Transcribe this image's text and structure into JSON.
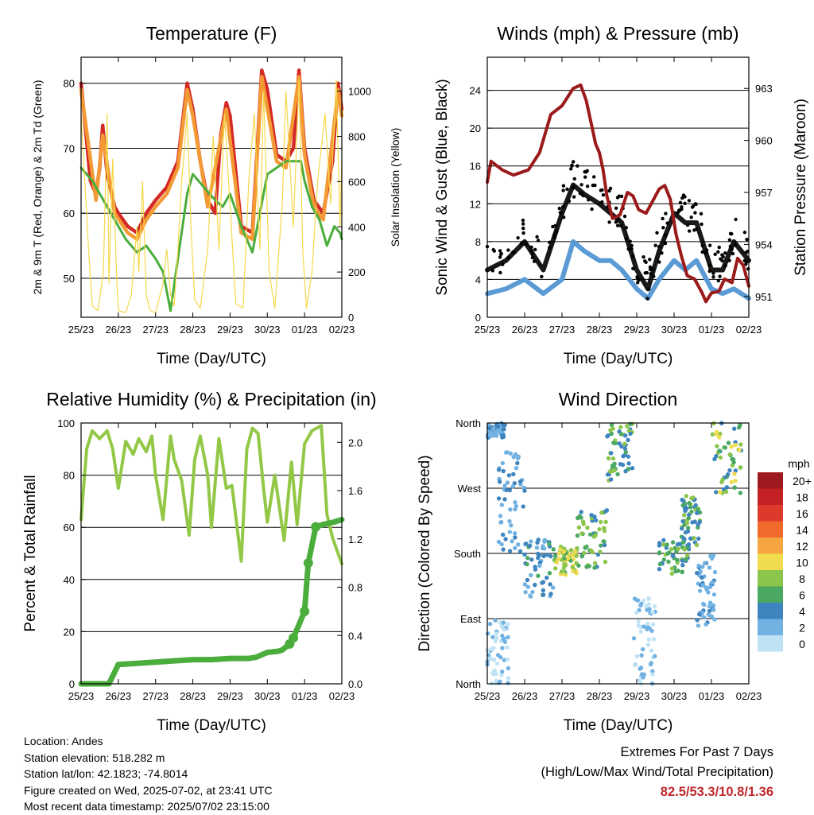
{
  "info": {
    "location": "Location: Andes",
    "elevation": "Station elevation: 518.282 m",
    "latlon": "Station lat/lon: 42.1823; -74.8014",
    "created": "Figure created on Wed, 2025-07-02, at 23:41 UTC",
    "recent": "Most recent data timestamp: 2025/07/02 23:15:00"
  },
  "extremes": {
    "title": "Extremes For Past 7 Days",
    "subtitle": "(High/Low/Max Wind/Total Precipitation)",
    "values": "82.5/53.3/10.8/1.36"
  },
  "colors": {
    "temp9m": "#d42a26",
    "temp2m": "#f39a35",
    "dewpoint": "#4aad3c",
    "solar": "#f5d84a",
    "wind": "#5b9bd5",
    "gust": "#000000",
    "pressure": "#9b1b1b",
    "rh": "#93c847",
    "precip": "#4aad3c"
  },
  "chart_data": [
    {
      "type": "line",
      "title": "Temperature (F)",
      "xlabel": "Time (Day/UTC)",
      "ylabel": "2m & 9m T (Red, Orange) & 2m Td (Green)",
      "ylabel_right": "Solar Insolation (Yellow)",
      "x_ticks": [
        "25/23",
        "26/23",
        "27/23",
        "28/23",
        "29/23",
        "30/23",
        "01/23",
        "02/23"
      ],
      "ylim": [
        44,
        84
      ],
      "y_ticks": [
        50,
        60,
        70,
        80
      ],
      "ylim_right": [
        0,
        1150
      ],
      "y_ticks_right": [
        0,
        200,
        400,
        600,
        800,
        1000
      ],
      "grid": true,
      "series": [
        {
          "axis": "left",
          "color": "#d42a26",
          "x": [
            0,
            0.12,
            0.25,
            0.4,
            0.5,
            0.58,
            0.7,
            0.9,
            1.0,
            1.25,
            1.5,
            1.75,
            2.0,
            2.3,
            2.6,
            2.85,
            3.0,
            3.2,
            3.4,
            3.6,
            3.75,
            3.9,
            4.0,
            4.3,
            4.6,
            4.75,
            4.85,
            5.0,
            5.25,
            5.5,
            5.7,
            5.85,
            6.0,
            6.25,
            6.5,
            6.75,
            6.9,
            7.0
          ],
          "values": [
            80,
            73,
            65,
            63,
            67,
            73.5,
            66,
            61,
            60,
            58,
            57,
            60,
            62,
            64,
            68,
            80,
            76,
            68,
            62,
            60,
            72,
            77,
            75,
            58,
            57,
            72,
            82,
            79,
            69,
            68,
            70,
            82,
            70,
            62,
            60,
            68,
            80,
            76
          ]
        },
        {
          "axis": "left",
          "color": "#f39a35",
          "x": [
            0,
            0.4,
            0.58,
            0.9,
            1.25,
            1.5,
            1.75,
            2.0,
            2.3,
            2.6,
            2.85,
            3.0,
            3.4,
            3.9,
            4.3,
            4.6,
            4.85,
            5.25,
            5.5,
            5.85,
            6.0,
            6.25,
            6.5,
            6.9,
            7.0
          ],
          "values": [
            79,
            62,
            72,
            60,
            57,
            56,
            59,
            61,
            63,
            67,
            79,
            75,
            61,
            76,
            57,
            56,
            81,
            68,
            67,
            81,
            69,
            61,
            59,
            79,
            75
          ]
        },
        {
          "axis": "left",
          "color": "#4aad3c",
          "x": [
            0,
            0.3,
            0.6,
            0.9,
            1.2,
            1.5,
            1.75,
            2.0,
            2.2,
            2.4,
            2.6,
            2.85,
            3.0,
            3.3,
            3.6,
            3.8,
            4.0,
            4.3,
            4.6,
            4.8,
            5.0,
            5.25,
            5.5,
            5.75,
            5.9,
            6.0,
            6.2,
            6.4,
            6.6,
            6.8,
            6.95,
            7.0
          ],
          "values": [
            67,
            65,
            62,
            59,
            56,
            54,
            55,
            53,
            51,
            45,
            53,
            63,
            66,
            64,
            62,
            61,
            63,
            58,
            54,
            60,
            66,
            67,
            68,
            68,
            68,
            65,
            61,
            59,
            55,
            58,
            57,
            56
          ]
        },
        {
          "axis": "right",
          "color": "#f5d84a",
          "x": [
            0,
            0.1,
            0.2,
            0.3,
            0.45,
            0.6,
            0.7,
            0.75,
            0.85,
            0.95,
            1.0,
            1.2,
            1.35,
            1.5,
            1.55,
            1.65,
            1.75,
            1.85,
            2.0,
            2.2,
            2.3,
            2.4,
            2.5,
            2.6,
            2.7,
            2.85,
            2.95,
            3.05,
            3.2,
            3.4,
            3.55,
            3.7,
            3.85,
            4.0,
            4.15,
            4.35,
            4.5,
            4.65,
            4.8,
            4.9,
            5.05,
            5.2,
            5.4,
            5.5,
            5.7,
            5.85,
            5.95,
            6.05,
            6.2,
            6.35,
            6.55,
            6.7,
            6.85,
            6.95,
            7.0
          ],
          "values": [
            900,
            600,
            300,
            50,
            30,
            200,
            900,
            150,
            700,
            200,
            30,
            20,
            100,
            400,
            200,
            600,
            100,
            30,
            20,
            150,
            300,
            100,
            50,
            300,
            600,
            900,
            400,
            80,
            40,
            300,
            800,
            300,
            900,
            500,
            60,
            40,
            600,
            900,
            300,
            1000,
            200,
            40,
            500,
            1000,
            400,
            1050,
            300,
            40,
            200,
            600,
            900,
            500,
            1050,
            400,
            700
          ]
        }
      ]
    },
    {
      "type": "line",
      "title": "Winds (mph) & Pressure (mb)",
      "xlabel": "Time (Day/UTC)",
      "ylabel": "Sonic Wind & Gust (Blue, Black)",
      "ylabel_right": "Station Pressure (Maroon)",
      "x_ticks": [
        "25/23",
        "26/23",
        "27/23",
        "28/23",
        "29/23",
        "30/23",
        "01/23",
        "02/23"
      ],
      "ylim": [
        0,
        27.5
      ],
      "y_ticks": [
        0,
        4,
        8,
        12,
        16,
        20,
        24
      ],
      "ylim_right": [
        949.8,
        964.8
      ],
      "y_ticks_right": [
        951,
        954,
        957,
        960,
        963
      ],
      "grid": true,
      "series": [
        {
          "axis": "left",
          "color": "#5b9bd5",
          "x": [
            0,
            0.5,
            1.0,
            1.5,
            2.0,
            2.3,
            2.6,
            3.0,
            3.3,
            3.6,
            4.0,
            4.3,
            4.6,
            5.0,
            5.3,
            5.6,
            6.0,
            6.3,
            6.6,
            7.0
          ],
          "values": [
            2.5,
            3,
            4,
            2.5,
            4,
            8,
            7,
            6,
            6,
            5,
            3,
            2,
            4,
            6,
            5,
            6,
            3,
            2.5,
            3,
            2
          ]
        },
        {
          "axis": "left",
          "color": "#000000",
          "x": [
            0,
            0.5,
            1.0,
            1.5,
            2.0,
            2.3,
            2.6,
            3.0,
            3.3,
            3.6,
            4.0,
            4.3,
            4.6,
            5.0,
            5.3,
            5.6,
            6.0,
            6.3,
            6.6,
            7.0
          ],
          "values": [
            5,
            6,
            8,
            5,
            11,
            14,
            13,
            12,
            11,
            10,
            5,
            3,
            7,
            11,
            10,
            10,
            5,
            5,
            8,
            6
          ]
        },
        {
          "axis": "right",
          "color": "#9b1b1b",
          "x": [
            0,
            0.1,
            0.4,
            0.7,
            1.1,
            1.4,
            1.7,
            2.0,
            2.3,
            2.5,
            2.65,
            2.8,
            2.9,
            3.0,
            3.1,
            3.2,
            3.35,
            3.55,
            3.75,
            3.9,
            4.05,
            4.25,
            4.45,
            4.6,
            4.75,
            4.9,
            5.05,
            5.2,
            5.35,
            5.55,
            5.75,
            5.85,
            6.0,
            6.2,
            6.35,
            6.55,
            6.7,
            6.85,
            7.0
          ],
          "values": [
            957.6,
            958.8,
            958.3,
            958.0,
            958.3,
            959.3,
            961.5,
            962.0,
            963.0,
            963.2,
            962.3,
            960.8,
            959.8,
            959.3,
            958.3,
            956.8,
            955.5,
            955.7,
            957.0,
            956.8,
            956.0,
            955.8,
            956.6,
            957.2,
            957.4,
            956.6,
            954.6,
            953.3,
            952.2,
            952.0,
            951.2,
            950.7,
            951.2,
            951.3,
            952.0,
            951.8,
            953.2,
            952.8,
            951.6
          ]
        }
      ]
    },
    {
      "type": "line",
      "title": "Relative Humidity (%) & Precipitation (in)",
      "xlabel": "Time (Day/UTC)",
      "ylabel": "Percent & Total Rainfall",
      "x_ticks": [
        "25/23",
        "26/23",
        "27/23",
        "28/23",
        "29/23",
        "30/23",
        "01/23",
        "02/23"
      ],
      "ylim": [
        0,
        100
      ],
      "y_ticks": [
        0,
        20,
        40,
        60,
        80,
        100
      ],
      "ylim_right": [
        0,
        2.16
      ],
      "y_ticks_right": [
        0.0,
        0.4,
        0.8,
        1.2,
        1.6,
        2.0
      ],
      "grid": true,
      "series": [
        {
          "axis": "left",
          "color": "#93c847",
          "x": [
            0,
            0.15,
            0.3,
            0.5,
            0.7,
            0.85,
            1.0,
            1.2,
            1.4,
            1.55,
            1.75,
            1.9,
            2.0,
            2.2,
            2.4,
            2.5,
            2.7,
            2.9,
            3.05,
            3.2,
            3.4,
            3.5,
            3.7,
            3.9,
            4.05,
            4.3,
            4.45,
            4.6,
            4.75,
            4.9,
            5.0,
            5.2,
            5.45,
            5.65,
            5.8,
            6.0,
            6.2,
            6.45,
            6.6,
            6.75,
            6.85,
            7.0
          ],
          "values": [
            63,
            90,
            97,
            94,
            97,
            90,
            75,
            93,
            88,
            94,
            89,
            95,
            80,
            63,
            95,
            86,
            78,
            57,
            86,
            95,
            80,
            60,
            94,
            75,
            76,
            47,
            90,
            98,
            96,
            75,
            62,
            80,
            55,
            85,
            61,
            92,
            97,
            99,
            65,
            56,
            52,
            46
          ]
        },
        {
          "axis": "right",
          "color": "#4aad3c",
          "x": [
            0,
            0.5,
            0.75,
            1.0,
            1.5,
            2.0,
            2.5,
            3.0,
            3.5,
            4.0,
            4.5,
            4.7,
            5.0,
            5.3,
            5.4,
            5.6,
            5.7,
            6.0,
            6.1,
            6.3,
            6.5,
            6.8,
            7.0
          ],
          "values": [
            0.0,
            0.0,
            0.0,
            0.16,
            0.17,
            0.18,
            0.19,
            0.2,
            0.2,
            0.21,
            0.21,
            0.22,
            0.26,
            0.27,
            0.28,
            0.33,
            0.38,
            0.6,
            1.0,
            1.3,
            1.32,
            1.34,
            1.36
          ]
        }
      ]
    },
    {
      "type": "scatter",
      "title": "Wind Direction",
      "xlabel": "Time (Day/UTC)",
      "ylabel": "Direction (Colored By Speed)",
      "x_ticks": [
        "25/23",
        "26/23",
        "27/23",
        "28/23",
        "29/23",
        "30/23",
        "01/23",
        "02/23"
      ],
      "y_tick_labels": [
        "North",
        "East",
        "South",
        "West",
        "North"
      ],
      "ylim": [
        0,
        360
      ],
      "y_ticks": [
        0,
        90,
        180,
        270,
        360
      ],
      "grid": true,
      "legend": {
        "title": "mph",
        "labels": [
          "20+",
          "18",
          "16",
          "14",
          "12",
          "10",
          "8",
          "6",
          "4",
          "2",
          "0"
        ],
        "colors": [
          "#9e1a1e",
          "#c42124",
          "#dd3a2e",
          "#f06a2c",
          "#f6a641",
          "#f0dc4e",
          "#8cc54c",
          "#4aa863",
          "#3e84bf",
          "#72b2e2",
          "#bfe3f5"
        ]
      },
      "clusters": [
        {
          "x": [
            0.0,
            0.5
          ],
          "dir": [
            340,
            360
          ],
          "speed": [
            1,
            4
          ]
        },
        {
          "x": [
            0.3,
            1.0
          ],
          "dir": [
            180,
            320
          ],
          "speed": [
            1,
            4
          ]
        },
        {
          "x": [
            0.0,
            0.6
          ],
          "dir": [
            0,
            90
          ],
          "speed": [
            0,
            2
          ]
        },
        {
          "x": [
            1.0,
            1.8
          ],
          "dir": [
            120,
            200
          ],
          "speed": [
            2,
            6
          ]
        },
        {
          "x": [
            1.8,
            2.4
          ],
          "dir": [
            150,
            190
          ],
          "speed": [
            6,
            11
          ]
        },
        {
          "x": [
            2.4,
            3.2
          ],
          "dir": [
            160,
            240
          ],
          "speed": [
            4,
            9
          ]
        },
        {
          "x": [
            3.2,
            3.9
          ],
          "dir": [
            280,
            360
          ],
          "speed": [
            3,
            9
          ]
        },
        {
          "x": [
            3.9,
            4.5
          ],
          "dir": [
            0,
            120
          ],
          "speed": [
            0,
            2
          ]
        },
        {
          "x": [
            4.6,
            5.4
          ],
          "dir": [
            150,
            200
          ],
          "speed": [
            3,
            8
          ]
        },
        {
          "x": [
            5.2,
            5.7
          ],
          "dir": [
            190,
            260
          ],
          "speed": [
            3,
            9
          ]
        },
        {
          "x": [
            5.6,
            6.1
          ],
          "dir": [
            80,
            180
          ],
          "speed": [
            1,
            4
          ]
        },
        {
          "x": [
            6.0,
            6.8
          ],
          "dir": [
            260,
            360
          ],
          "speed": [
            3,
            10
          ]
        }
      ]
    }
  ]
}
